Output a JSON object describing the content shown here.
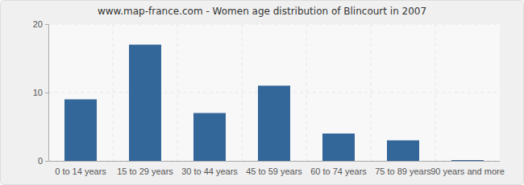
{
  "chart_data": {
    "type": "bar",
    "title": "www.map-france.com - Women age distribution of Blincourt in 2007",
    "categories": [
      "0 to 14 years",
      "15 to 29 years",
      "30 to 44 years",
      "45 to 59 years",
      "60 to 74 years",
      "75 to 89 years",
      "90 years and more"
    ],
    "values": [
      9,
      17,
      7,
      11,
      4,
      3,
      0
    ],
    "color": "#336699",
    "ylim": [
      0,
      20
    ],
    "yticks": [
      0,
      10,
      20
    ],
    "grid": true
  }
}
